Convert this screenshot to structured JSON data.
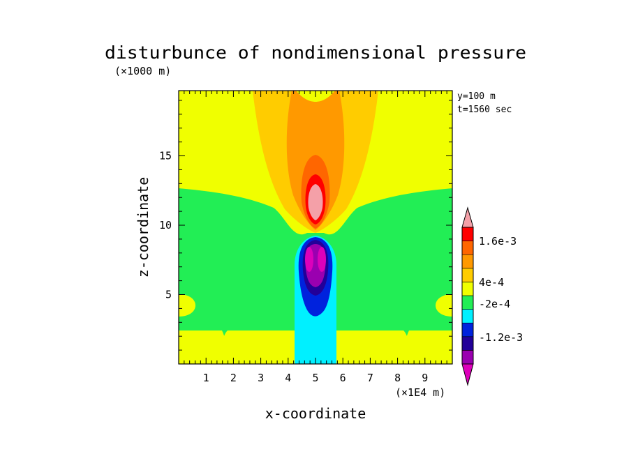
{
  "chart_data": {
    "type": "contour",
    "title": "disturbunce of nondimensional pressure",
    "xlabel": "x-coordinate",
    "ylabel": "z-coordinate",
    "x_unit": "(×1E4 m)",
    "y_unit": "(×1000 m)",
    "annotations": [
      "y=100 m",
      "t=1560 sec"
    ],
    "xlim": [
      0,
      10
    ],
    "ylim": [
      0,
      19.7
    ],
    "x_ticks": [
      1,
      2,
      3,
      4,
      5,
      6,
      7,
      8,
      9
    ],
    "y_ticks": [
      5,
      10,
      15
    ],
    "colorbar": {
      "levels": [
        -0.002,
        -0.0016,
        -0.0012,
        -0.0008,
        -0.0004,
        -0.0002,
        0,
        0.0004,
        0.0008,
        0.0012,
        0.0016,
        0.002
      ],
      "colors": [
        "#dd00bb",
        "#9a00b0",
        "#220099",
        "#0022dd",
        "#00f0ff",
        "#22ee55",
        "#f0ff00",
        "#ffcc00",
        "#ff9900",
        "#ff6600",
        "#ff0000",
        "#f4a0a8"
      ],
      "tick_labels": [
        "1.6e-3",
        "4e-4",
        "-2e-4",
        "-1.2e-3"
      ],
      "extend": "both"
    }
  }
}
